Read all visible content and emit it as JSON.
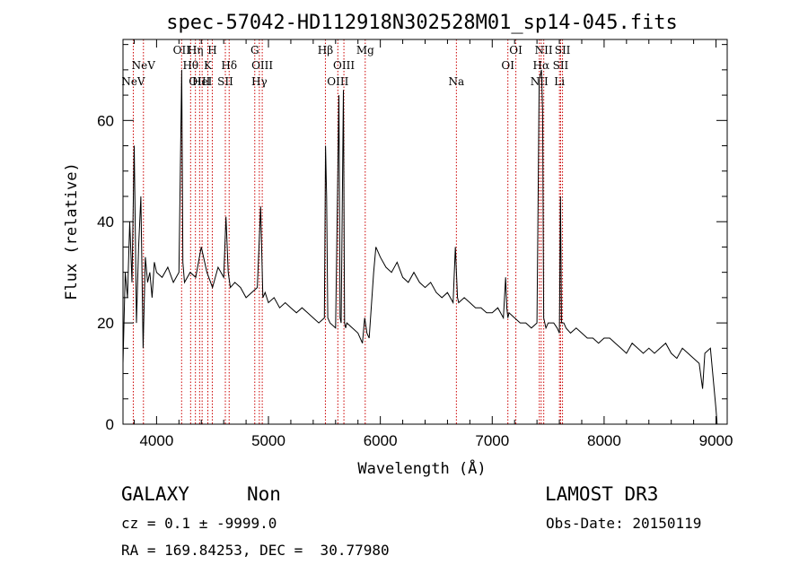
{
  "chart_data": {
    "type": "line",
    "title": "spec-57042-HD112918N302528M01_sp14-045.fits",
    "xlabel": "Wavelength (Å)",
    "ylabel": "Flux (relative)",
    "xlim": [
      3700,
      9100
    ],
    "ylim": [
      0,
      76
    ],
    "xticks": [
      4000,
      5000,
      6000,
      7000,
      8000,
      9000
    ],
    "yticks": [
      0,
      20,
      40,
      60
    ],
    "series": [
      {
        "x": [
          3700,
          3720,
          3740,
          3760,
          3780,
          3800,
          3820,
          3840,
          3860,
          3880,
          3900,
          3920,
          3940,
          3960,
          3980,
          4000,
          4050,
          4100,
          4150,
          4200,
          4225,
          4235,
          4250,
          4300,
          4350,
          4400,
          4450,
          4500,
          4550,
          4600,
          4620,
          4640,
          4660,
          4700,
          4750,
          4800,
          4850,
          4900,
          4930,
          4950,
          4970,
          5000,
          5050,
          5100,
          5150,
          5200,
          5250,
          5300,
          5350,
          5400,
          5450,
          5500,
          5510,
          5520,
          5530,
          5550,
          5600,
          5630,
          5640,
          5650,
          5670,
          5680,
          5690,
          5700,
          5750,
          5800,
          5840,
          5860,
          5880,
          5900,
          5940,
          5960,
          6000,
          6050,
          6100,
          6150,
          6200,
          6250,
          6300,
          6350,
          6400,
          6450,
          6500,
          6550,
          6600,
          6650,
          6670,
          6690,
          6700,
          6750,
          6800,
          6850,
          6900,
          6950,
          7000,
          7050,
          7100,
          7120,
          7130,
          7140,
          7150,
          7200,
          7250,
          7300,
          7350,
          7400,
          7420,
          7440,
          7450,
          7460,
          7480,
          7500,
          7550,
          7580,
          7600,
          7610,
          7620,
          7640,
          7660,
          7700,
          7750,
          7800,
          7850,
          7900,
          7950,
          8000,
          8050,
          8100,
          8150,
          8200,
          8250,
          8300,
          8350,
          8400,
          8450,
          8500,
          8550,
          8600,
          8650,
          8700,
          8750,
          8800,
          8850,
          8880,
          8900,
          8950,
          9000,
          9010
        ],
        "values": [
          12,
          30,
          25,
          40,
          28,
          55,
          20,
          35,
          45,
          15,
          33,
          28,
          30,
          25,
          32,
          30,
          29,
          31,
          28,
          30,
          70,
          32,
          28,
          30,
          29,
          35,
          30,
          27,
          31,
          29,
          41,
          30,
          27,
          28,
          27,
          25,
          26,
          27,
          43,
          25,
          26,
          24,
          25,
          23,
          24,
          23,
          22,
          23,
          22,
          21,
          20,
          21,
          55,
          45,
          21,
          20,
          19,
          65,
          21,
          20,
          66,
          20,
          19,
          20,
          19,
          18,
          16,
          21,
          18,
          17,
          30,
          35,
          33,
          31,
          30,
          32,
          29,
          28,
          30,
          28,
          27,
          28,
          26,
          25,
          26,
          24,
          35,
          25,
          24,
          25,
          24,
          23,
          23,
          22,
          22,
          23,
          21,
          29,
          23,
          21,
          22,
          21,
          20,
          20,
          19,
          20,
          68,
          70,
          62,
          21,
          19,
          20,
          20,
          19,
          18,
          45,
          20,
          20,
          19,
          18,
          19,
          18,
          17,
          17,
          16,
          17,
          17,
          16,
          15,
          14,
          16,
          15,
          14,
          15,
          14,
          15,
          16,
          14,
          13,
          15,
          14,
          13,
          12,
          7,
          14,
          15,
          3,
          0
        ]
      }
    ],
    "lines": [
      {
        "label": "NeV",
        "wavelength": 3346,
        "row": 3
      },
      {
        "label": "NeV",
        "wavelength": 3426,
        "row": 2
      },
      {
        "label": "OII",
        "wavelength": 3727,
        "row": 1
      },
      {
        "label": "Hθ",
        "wavelength": 3798,
        "row": 2
      },
      {
        "label": "Hη",
        "wavelength": 3836,
        "row": 1
      },
      {
        "label": "OIII",
        "wavelength": 3869,
        "row": 3
      },
      {
        "label": "HeI",
        "wavelength": 3889,
        "row": 3
      },
      {
        "label": "K",
        "wavelength": 3934,
        "row": 2
      },
      {
        "label": "H",
        "wavelength": 3969,
        "row": 1
      },
      {
        "label": "SII",
        "wavelength": 4072,
        "row": 3
      },
      {
        "label": "Hδ",
        "wavelength": 4102,
        "row": 2
      },
      {
        "label": "G",
        "wavelength": 4304,
        "row": 1
      },
      {
        "label": "Hγ",
        "wavelength": 4340,
        "row": 3
      },
      {
        "label": "OIII",
        "wavelength": 4363,
        "row": 2
      },
      {
        "label": "Hβ",
        "wavelength": 4861,
        "row": 1
      },
      {
        "label": "OIII",
        "wavelength": 4959,
        "row": 3
      },
      {
        "label": "OIII",
        "wavelength": 5007,
        "row": 2
      },
      {
        "label": "Mg",
        "wavelength": 5175,
        "row": 1
      },
      {
        "label": "Na",
        "wavelength": 5894,
        "row": 3
      },
      {
        "label": "OI",
        "wavelength": 6300,
        "row": 2
      },
      {
        "label": "OI",
        "wavelength": 6363,
        "row": 1
      },
      {
        "label": "NII",
        "wavelength": 6548,
        "row": 3
      },
      {
        "label": "Hα",
        "wavelength": 6563,
        "row": 2
      },
      {
        "label": "NII",
        "wavelength": 6583,
        "row": 1
      },
      {
        "label": "Li",
        "wavelength": 6707,
        "row": 3
      },
      {
        "label": "SII",
        "wavelength": 6716,
        "row": 2
      },
      {
        "label": "SII",
        "wavelength": 6731,
        "row": 1
      }
    ],
    "line_redshift_z": 0.1333,
    "grid": false,
    "colors": {
      "line": "#000000",
      "markers": "#cc0000"
    }
  },
  "info": {
    "class": "GALAXY",
    "subclass": "Non",
    "survey": "LAMOST DR3",
    "cz": "cz = 0.1 ± -9999.0",
    "obs_date": "Obs-Date: 20150119",
    "coords": "RA = 169.84253, DEC =  30.77980"
  }
}
